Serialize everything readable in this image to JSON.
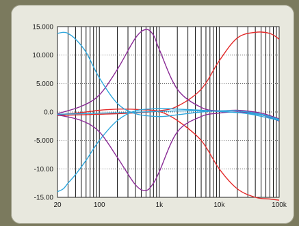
{
  "colors": {
    "background": "#7b7a5e",
    "panel": "#e8e8de",
    "plot_bg": "#ffffff",
    "red": "#e32b2b",
    "purple": "#8a2b96",
    "blue": "#2ea6dc"
  },
  "chart_data": {
    "type": "line",
    "title": "",
    "xlabel": "",
    "ylabel": "",
    "x_scale": "log",
    "xlim": [
      20,
      100000
    ],
    "ylim": [
      -15,
      15
    ],
    "grid": true,
    "x_tick_labels": [
      "20",
      "100",
      "1k",
      "10k",
      "100k"
    ],
    "x_tick_values": [
      20,
      100,
      1000,
      10000,
      100000
    ],
    "y_tick_labels": [
      "15.000",
      "10.000",
      "5.000",
      "0.0",
      "-5.000",
      "-10.00",
      "-15.00"
    ],
    "y_tick_values": [
      15,
      10,
      5,
      0,
      -5,
      -10,
      -15
    ],
    "series": [
      {
        "color": "red",
        "x": [
          20,
          50,
          100,
          200,
          500,
          1000,
          2000,
          5000,
          10000,
          20000,
          40000,
          70000,
          100000
        ],
        "y": [
          -0.6,
          -0.5,
          -0.4,
          -0.3,
          -0.1,
          0.2,
          1.0,
          4.0,
          9.0,
          13.0,
          14.0,
          13.8,
          12.8
        ]
      },
      {
        "color": "red",
        "x": [
          20,
          50,
          100,
          200,
          300,
          500,
          1000,
          2000,
          5000,
          10000,
          20000,
          40000,
          70000,
          100000
        ],
        "y": [
          -0.5,
          -0.1,
          0.3,
          0.5,
          0.5,
          0.4,
          0.1,
          -1.5,
          -5.0,
          -10.0,
          -13.5,
          -15.0,
          -15.3,
          -15.5
        ]
      },
      {
        "color": "purple",
        "x": [
          20,
          50,
          100,
          200,
          400,
          600,
          800,
          1000,
          2000,
          5000,
          10000,
          20000,
          50000,
          100000
        ],
        "y": [
          -0.3,
          1.0,
          3.0,
          7.5,
          13.0,
          14.5,
          13.5,
          11.0,
          4.0,
          0.8,
          0.2,
          0.3,
          -0.2,
          -1.2
        ]
      },
      {
        "color": "purple",
        "x": [
          20,
          50,
          100,
          200,
          400,
          600,
          800,
          1000,
          2000,
          5000,
          10000,
          20000,
          50000,
          100000
        ],
        "y": [
          -0.5,
          -1.5,
          -3.5,
          -8.0,
          -12.8,
          -13.8,
          -12.5,
          -10.5,
          -3.5,
          -0.8,
          -0.2,
          0.0,
          -0.5,
          -1.6
        ]
      },
      {
        "color": "blue",
        "x": [
          20,
          25,
          30,
          40,
          60,
          100,
          200,
          400,
          1000,
          2000,
          5000,
          10000,
          20000,
          50000,
          100000
        ],
        "y": [
          13.8,
          14.0,
          13.8,
          12.8,
          10.5,
          6.0,
          1.5,
          -0.3,
          -0.8,
          -0.5,
          0.0,
          0.2,
          0.2,
          -0.4,
          -1.3
        ]
      },
      {
        "color": "blue",
        "x": [
          20,
          25,
          30,
          40,
          60,
          100,
          200,
          400,
          1000,
          2000,
          5000,
          10000,
          20000,
          50000,
          100000
        ],
        "y": [
          -14.0,
          -13.5,
          -12.5,
          -11.0,
          -8.5,
          -5.0,
          -1.5,
          0.2,
          0.6,
          0.5,
          0.3,
          0.1,
          -0.1,
          -0.5,
          -1.4
        ]
      },
      {
        "color": "blue",
        "x": [
          20,
          50,
          100,
          300,
          1000,
          3000,
          10000,
          30000,
          100000
        ],
        "y": [
          -0.4,
          -0.3,
          -0.2,
          -0.1,
          0.1,
          0.2,
          0.1,
          -0.3,
          -1.5
        ]
      }
    ]
  }
}
